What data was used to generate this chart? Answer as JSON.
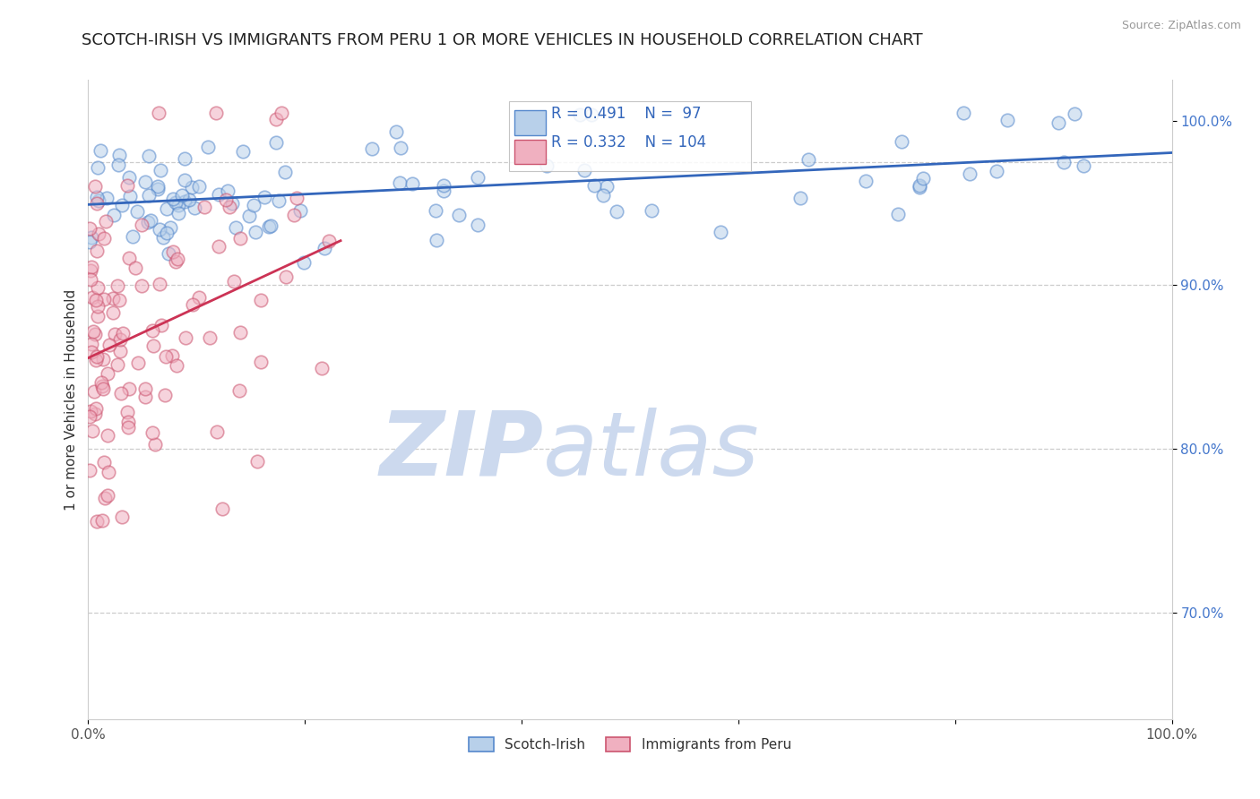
{
  "title": "SCOTCH-IRISH VS IMMIGRANTS FROM PERU 1 OR MORE VEHICLES IN HOUSEHOLD CORRELATION CHART",
  "source_text": "Source: ZipAtlas.com",
  "ylabel": "1 or more Vehicles in Household",
  "xlim": [
    0.0,
    1.0
  ],
  "ylim": [
    0.635,
    1.025
  ],
  "xticks": [
    0.0,
    0.2,
    0.4,
    0.6,
    0.8,
    1.0
  ],
  "xticklabels": [
    "0.0%",
    "",
    "",
    "",
    "",
    "100.0%"
  ],
  "yticks": [
    0.7,
    0.8,
    0.9,
    1.0
  ],
  "yticklabels": [
    "70.0%",
    "80.0%",
    "90.0%",
    "100.0%"
  ],
  "legend_labels": [
    "Scotch-Irish",
    "Immigrants from Peru"
  ],
  "blue_fill": "#b8d0ea",
  "blue_edge": "#5588cc",
  "pink_fill": "#f0b0c0",
  "pink_edge": "#cc5570",
  "blue_line_color": "#3366bb",
  "pink_line_color": "#cc3355",
  "R_blue": 0.491,
  "N_blue": 97,
  "R_pink": 0.332,
  "N_pink": 104,
  "watermark_zip": "ZIP",
  "watermark_atlas": "atlas",
  "watermark_color": "#ccd9ee",
  "title_fontsize": 13,
  "axis_label_fontsize": 11,
  "tick_fontsize": 11,
  "scatter_size": 110,
  "scatter_alpha": 0.55,
  "scatter_linewidth": 1.2,
  "background_color": "#ffffff",
  "grid_color": "#cccccc",
  "annotation_box_color": "#3366bb",
  "blue_seed": 7,
  "pink_seed": 42
}
